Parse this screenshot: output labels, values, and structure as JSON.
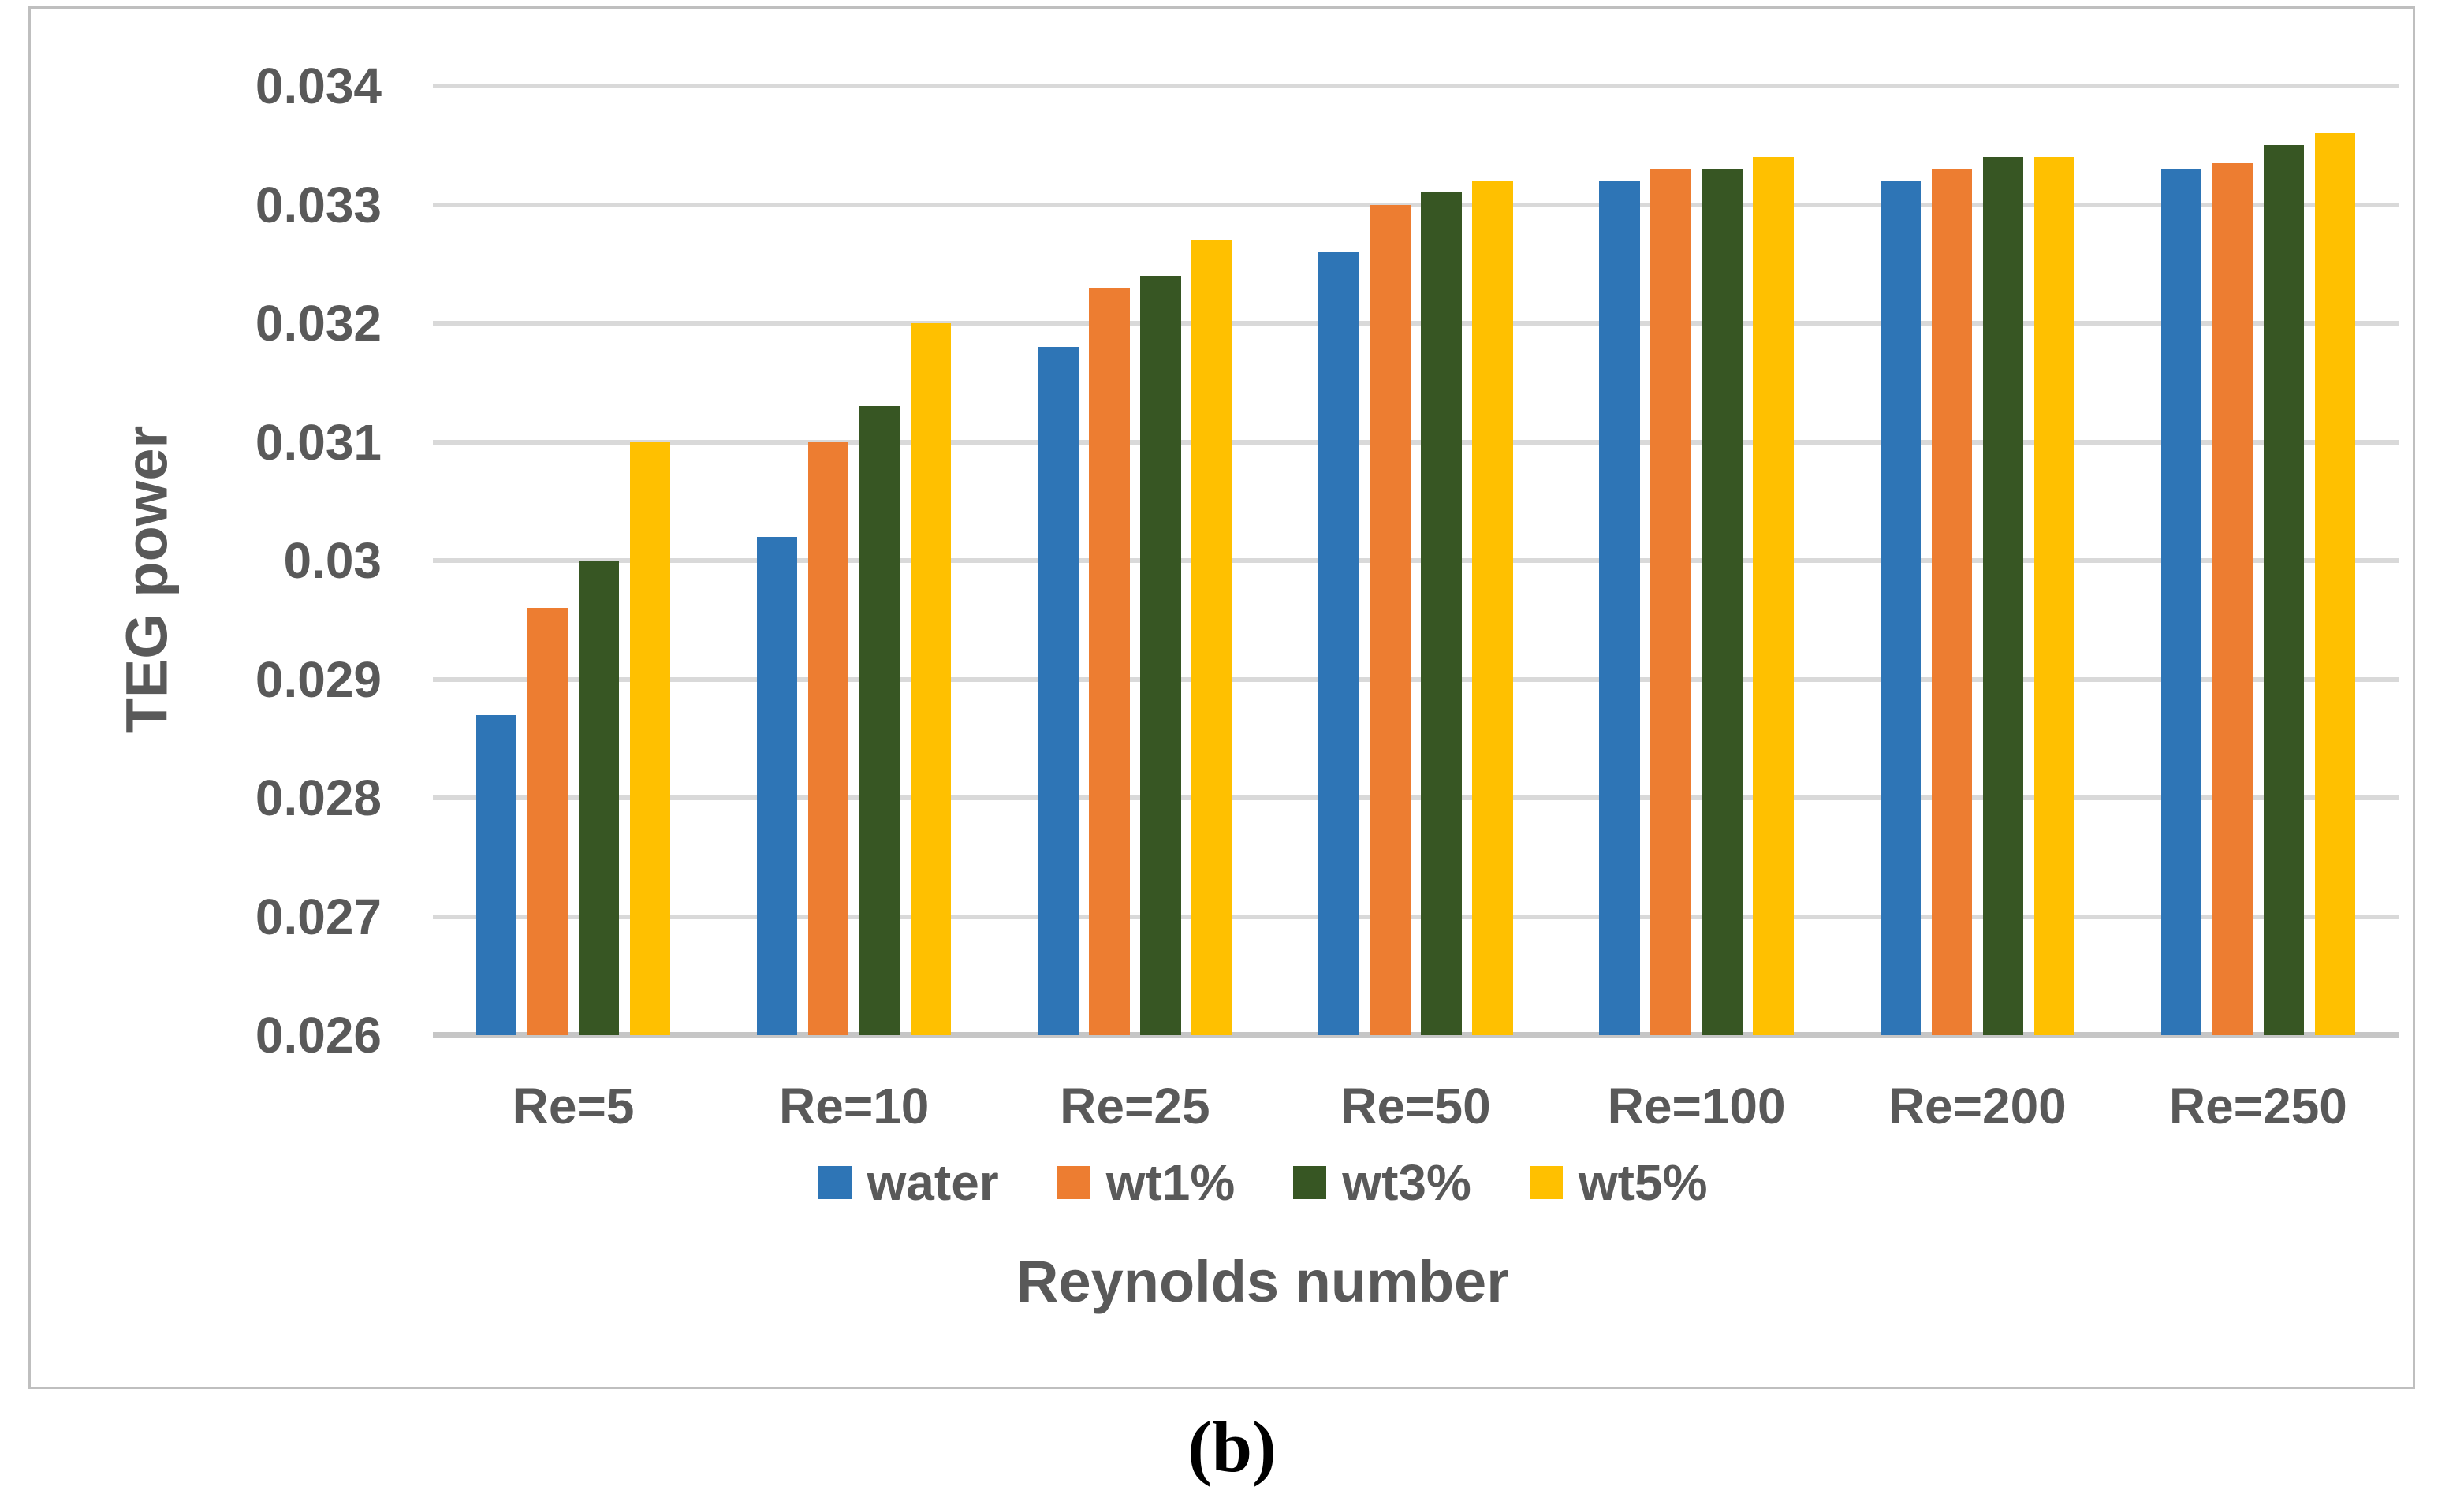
{
  "caption": "(b)",
  "colors": {
    "text": "#595959",
    "gridline": "#D9D9D9",
    "axis_line": "#C6C6C6",
    "frame_border": "#BFBFBF",
    "background": "#FFFFFF"
  },
  "chart_data": {
    "type": "bar",
    "title": "",
    "xlabel": "Reynolds number",
    "ylabel": "TEG power",
    "categories": [
      "Re=5",
      "Re=10",
      "Re=25",
      "Re=50",
      "Re=100",
      "Re=200",
      "Re=250"
    ],
    "series": [
      {
        "name": "water",
        "color": "#2E75B6",
        "values": [
          0.0287,
          0.0302,
          0.0318,
          0.0326,
          0.0332,
          0.0332,
          0.0333
        ]
      },
      {
        "name": "wt1%",
        "color": "#ED7D31",
        "values": [
          0.0296,
          0.031,
          0.0323,
          0.033,
          0.0333,
          0.0333,
          0.03335
        ]
      },
      {
        "name": "wt3%",
        "color": "#375623",
        "values": [
          0.03,
          0.0313,
          0.0324,
          0.0331,
          0.0333,
          0.0334,
          0.0335
        ]
      },
      {
        "name": "wt5%",
        "color": "#FFC000",
        "values": [
          0.031,
          0.032,
          0.0327,
          0.0332,
          0.0334,
          0.0334,
          0.0336
        ]
      }
    ],
    "ylim": [
      0.026,
      0.034
    ],
    "yticks": [
      0.026,
      0.027,
      0.028,
      0.029,
      0.03,
      0.031,
      0.032,
      0.033,
      0.034
    ],
    "ytick_labels": [
      "0.026",
      "0.027",
      "0.028",
      "0.029",
      "0.03",
      "0.031",
      "0.032",
      "0.033",
      "0.034"
    ],
    "grid": true,
    "legend_position": "bottom"
  }
}
